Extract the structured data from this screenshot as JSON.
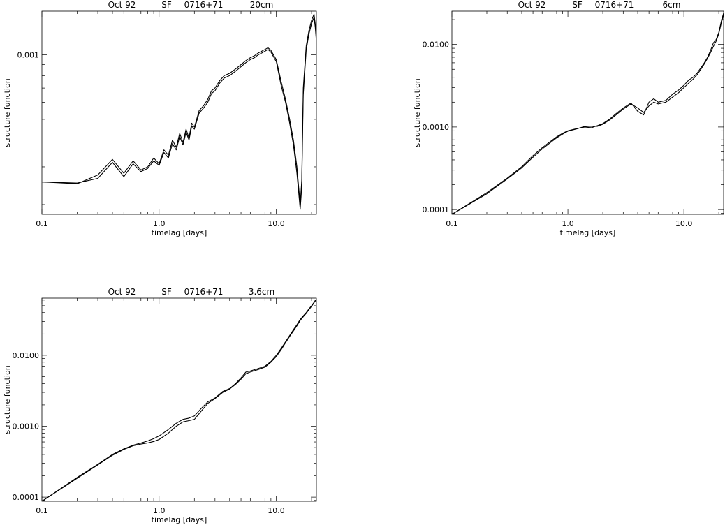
{
  "chart_data": [
    {
      "type": "line",
      "title_parts": [
        "Oct 92",
        "SF",
        "0716+71",
        "20cm"
      ],
      "xlabel": "timelag [days]",
      "ylabel": "structure function",
      "xscale": "log",
      "yscale": "log",
      "xlim": [
        0.1,
        22
      ],
      "ylim": [
        0.00018,
        0.0016
      ],
      "xticks": [
        {
          "v": 0.1,
          "label": "0.1"
        },
        {
          "v": 1.0,
          "label": "1.0"
        },
        {
          "v": 10.0,
          "label": "10.0"
        }
      ],
      "yticks": [
        {
          "v": 0.001,
          "label": "0.001"
        }
      ],
      "series": [
        {
          "x": [
            0.1,
            0.2,
            0.3,
            0.4,
            0.5,
            0.6,
            0.7,
            0.8,
            0.9,
            1.0,
            1.1,
            1.2,
            1.3,
            1.4,
            1.5,
            1.6,
            1.7,
            1.8,
            1.9,
            2.0,
            2.2,
            2.4,
            2.6,
            2.8,
            3.0,
            3.3,
            3.6,
            4.0,
            4.5,
            5.0,
            5.5,
            6.0,
            6.5,
            7.0,
            7.5,
            8.0,
            8.5,
            9.0,
            10.0,
            11.0,
            12.0,
            13.0,
            14.0,
            15.0,
            16.0,
            16.5,
            17.0,
            18.0,
            19.0,
            20.0,
            21.0,
            21.5,
            22.0
          ],
          "y": [
            0.000255,
            0.00025,
            0.000275,
            0.000325,
            0.00028,
            0.00032,
            0.00029,
            0.0003,
            0.00033,
            0.00031,
            0.00036,
            0.00034,
            0.0004,
            0.00037,
            0.00043,
            0.00039,
            0.00045,
            0.00041,
            0.00048,
            0.00046,
            0.00055,
            0.00058,
            0.00062,
            0.00068,
            0.0007,
            0.00076,
            0.0008,
            0.00082,
            0.00086,
            0.0009,
            0.00094,
            0.00097,
            0.00099,
            0.00102,
            0.00104,
            0.00106,
            0.00108,
            0.00105,
            0.00095,
            0.00075,
            0.00062,
            0.0005,
            0.0004,
            0.0003,
            0.0002,
            0.00026,
            0.0007,
            0.0011,
            0.0013,
            0.00145,
            0.00155,
            0.0014,
            0.0012
          ]
        },
        {
          "x": [
            0.1,
            0.2,
            0.3,
            0.4,
            0.5,
            0.6,
            0.7,
            0.8,
            0.9,
            1.0,
            1.1,
            1.2,
            1.3,
            1.4,
            1.5,
            1.6,
            1.7,
            1.8,
            1.9,
            2.0,
            2.2,
            2.4,
            2.6,
            2.8,
            3.0,
            3.3,
            3.6,
            4.0,
            4.5,
            5.0,
            5.5,
            6.0,
            6.5,
            7.0,
            7.5,
            8.0,
            8.5,
            9.0,
            10.0,
            11.0,
            12.0,
            13.0,
            14.0,
            15.0,
            16.0,
            16.5,
            17.0,
            18.0,
            19.0,
            20.0,
            21.0,
            21.5,
            22.0
          ],
          "y": [
            0.000255,
            0.000252,
            0.000265,
            0.000315,
            0.00027,
            0.00031,
            0.000285,
            0.000295,
            0.00032,
            0.000305,
            0.00035,
            0.00033,
            0.000385,
            0.00036,
            0.000415,
            0.00038,
            0.000435,
            0.0004,
            0.000465,
            0.00045,
            0.000535,
            0.000565,
            0.0006,
            0.00066,
            0.00068,
            0.00074,
            0.00078,
            0.0008,
            0.00084,
            0.00088,
            0.00092,
            0.00095,
            0.00097,
            0.001,
            0.00102,
            0.00104,
            0.00106,
            0.00103,
            0.00093,
            0.00072,
            0.0006,
            0.00048,
            0.00038,
            0.00028,
            0.00019,
            0.00024,
            0.00065,
            0.00105,
            0.00125,
            0.0014,
            0.0015,
            0.00135,
            0.00115
          ]
        }
      ]
    },
    {
      "type": "line",
      "title_parts": [
        "Oct 92",
        "SF",
        "0716+71",
        "6cm"
      ],
      "xlabel": "timelag [days]",
      "ylabel": "structure function",
      "xscale": "log",
      "yscale": "log",
      "xlim": [
        0.1,
        22
      ],
      "ylim": [
        8.75e-05,
        0.0253
      ],
      "xticks": [
        {
          "v": 0.1,
          "label": "0.1"
        },
        {
          "v": 1.0,
          "label": "1.0"
        },
        {
          "v": 10.0,
          "label": "10.0"
        }
      ],
      "yticks": [
        {
          "v": 0.0001,
          "label": "0.0001"
        },
        {
          "v": 0.001,
          "label": "0.0010"
        },
        {
          "v": 0.01,
          "label": "0.0100"
        }
      ],
      "series": [
        {
          "x": [
            0.1,
            0.2,
            0.3,
            0.4,
            0.5,
            0.6,
            0.7,
            0.8,
            0.9,
            1.0,
            1.2,
            1.4,
            1.6,
            1.8,
            2.0,
            2.3,
            2.6,
            3.0,
            3.5,
            4.0,
            4.5,
            5.0,
            5.5,
            6.0,
            7.0,
            8.0,
            9.0,
            10.0,
            11.0,
            12.0,
            13.0,
            14.0,
            15.0,
            16.0,
            17.0,
            18.0,
            19.0,
            20.0,
            21.0,
            22.0
          ],
          "y": [
            8.75e-05,
            0.00016,
            0.00024,
            0.00033,
            0.00045,
            0.00056,
            0.00066,
            0.00076,
            0.00084,
            0.0009,
            0.00096,
            0.001,
            0.00098,
            0.00104,
            0.0011,
            0.00125,
            0.00145,
            0.0017,
            0.00195,
            0.00155,
            0.0014,
            0.002,
            0.0022,
            0.002,
            0.0021,
            0.0025,
            0.0028,
            0.0032,
            0.0037,
            0.004,
            0.0045,
            0.0052,
            0.006,
            0.007,
            0.0085,
            0.0105,
            0.0115,
            0.014,
            0.019,
            0.024
          ]
        },
        {
          "x": [
            0.1,
            0.2,
            0.3,
            0.4,
            0.5,
            0.6,
            0.7,
            0.8,
            0.9,
            1.0,
            1.2,
            1.4,
            1.6,
            1.8,
            2.0,
            2.3,
            2.6,
            3.0,
            3.5,
            4.0,
            4.5,
            5.0,
            5.5,
            6.0,
            7.0,
            8.0,
            9.0,
            10.0,
            11.0,
            12.0,
            13.0,
            14.0,
            15.0,
            16.0,
            17.0,
            18.0,
            19.0,
            20.0,
            21.0,
            22.0
          ],
          "y": [
            8.75e-05,
            0.000155,
            0.000235,
            0.00032,
            0.00043,
            0.00054,
            0.00064,
            0.00074,
            0.00082,
            0.00089,
            0.00095,
            0.00102,
            0.00102,
            0.00102,
            0.00108,
            0.00122,
            0.0014,
            0.00165,
            0.0019,
            0.0017,
            0.0015,
            0.0018,
            0.002,
            0.0019,
            0.002,
            0.0023,
            0.0026,
            0.003,
            0.0034,
            0.0038,
            0.0043,
            0.005,
            0.0058,
            0.0068,
            0.008,
            0.0095,
            0.011,
            0.0135,
            0.018,
            0.023
          ]
        }
      ]
    },
    {
      "type": "line",
      "title_parts": [
        "Oct 92",
        "SF",
        "0716+71",
        "3.6cm"
      ],
      "xlabel": "timelag [days]",
      "ylabel": "structure function",
      "xscale": "log",
      "yscale": "log",
      "xlim": [
        0.1,
        22
      ],
      "ylim": [
        8.75e-05,
        0.064
      ],
      "xticks": [
        {
          "v": 0.1,
          "label": "0.1"
        },
        {
          "v": 1.0,
          "label": "1.0"
        },
        {
          "v": 10.0,
          "label": "10.0"
        }
      ],
      "yticks": [
        {
          "v": 0.0001,
          "label": "0.0001"
        },
        {
          "v": 0.001,
          "label": "0.0010"
        },
        {
          "v": 0.01,
          "label": "0.0100"
        }
      ],
      "series": [
        {
          "x": [
            0.1,
            0.2,
            0.3,
            0.4,
            0.5,
            0.6,
            0.7,
            0.8,
            0.9,
            1.0,
            1.2,
            1.4,
            1.6,
            1.8,
            2.0,
            2.3,
            2.6,
            3.0,
            3.5,
            4.0,
            4.5,
            5.0,
            5.5,
            6.0,
            7.0,
            8.0,
            9.0,
            10.0,
            11.0,
            12.0,
            13.0,
            14.0,
            15.0,
            16.0,
            17.0,
            18.0,
            19.0,
            20.0,
            21.0,
            22.0
          ],
          "y": [
            8.75e-05,
            0.00019,
            0.00029,
            0.0004,
            0.00048,
            0.00054,
            0.00058,
            0.00062,
            0.00067,
            0.00073,
            0.0009,
            0.0011,
            0.00125,
            0.0013,
            0.0014,
            0.0018,
            0.0022,
            0.0025,
            0.0031,
            0.0034,
            0.004,
            0.0048,
            0.0058,
            0.006,
            0.0065,
            0.007,
            0.0082,
            0.01,
            0.0125,
            0.0155,
            0.019,
            0.023,
            0.027,
            0.032,
            0.036,
            0.04,
            0.045,
            0.05,
            0.056,
            0.062
          ]
        },
        {
          "x": [
            0.1,
            0.2,
            0.3,
            0.4,
            0.5,
            0.6,
            0.7,
            0.8,
            0.9,
            1.0,
            1.2,
            1.4,
            1.6,
            1.8,
            2.0,
            2.3,
            2.6,
            3.0,
            3.5,
            4.0,
            4.5,
            5.0,
            5.5,
            6.0,
            7.0,
            8.0,
            9.0,
            10.0,
            11.0,
            12.0,
            13.0,
            14.0,
            15.0,
            16.0,
            17.0,
            18.0,
            19.0,
            20.0,
            21.0,
            22.0
          ],
          "y": [
            8.75e-05,
            0.000185,
            0.000285,
            0.00039,
            0.00047,
            0.00053,
            0.00056,
            0.00058,
            0.00061,
            0.00065,
            0.0008,
            0.001,
            0.00115,
            0.0012,
            0.00125,
            0.00165,
            0.0021,
            0.00245,
            0.003,
            0.00335,
            0.0039,
            0.0046,
            0.0055,
            0.0058,
            0.0063,
            0.0068,
            0.008,
            0.0096,
            0.012,
            0.015,
            0.0185,
            0.022,
            0.026,
            0.031,
            0.035,
            0.039,
            0.044,
            0.049,
            0.055,
            0.061
          ]
        }
      ]
    }
  ]
}
